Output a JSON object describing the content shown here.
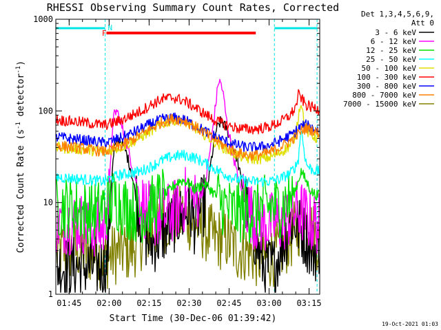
{
  "chart_data": {
    "type": "line",
    "title": "RHESSI Observing Summary Count Rates, Corrected",
    "xlabel": "Start Time (30-Dec-06 01:39:42)",
    "ylabel_main": "Corrected Count Rate (s",
    "ylabel_sup1": "-1",
    "ylabel_mid": " detector",
    "ylabel_sup2": "-1",
    "ylabel_end": ")",
    "y_scale": "log",
    "ylim": [
      1,
      1000
    ],
    "xlim_min": [
      0,
      99
    ],
    "x_tick_min": [
      5,
      20,
      35,
      50,
      65,
      80,
      95
    ],
    "x_tick_labels": [
      "01:45",
      "02:00",
      "02:15",
      "02:30",
      "02:45",
      "03:00",
      "03:15"
    ],
    "y_tick_values": [
      1,
      10,
      100,
      1000
    ],
    "y_tick_labels": [
      "1",
      "10",
      "100",
      "1000"
    ],
    "legend_header": [
      "Det 1,3,4,5,6,9,",
      "Att 0"
    ],
    "legend_placement": "right",
    "timestamp": "19-Oct-2021 01:03",
    "flags": {
      "night_bars": [
        [
          0,
          18.5
        ],
        [
          82,
          98
        ]
      ],
      "night_color": "#00e5e5",
      "night_label": "N",
      "night_label_min": 19.5,
      "flare_bar": [
        19,
        75
      ],
      "flare_color": "#ff0000",
      "flare_label": "F",
      "flare_label_min": 17.3,
      "night_boundaries_min": [
        18.5,
        82,
        98
      ]
    },
    "series": [
      {
        "name": "3 - 6 keV",
        "color": "#000000",
        "floor": 2,
        "x": [
          0,
          18,
          19,
          20,
          21,
          22,
          24,
          26,
          28,
          30,
          32,
          34,
          36,
          40,
          44,
          46,
          48,
          50,
          52,
          54,
          56,
          58,
          60,
          62,
          64,
          66,
          68,
          70,
          72,
          74,
          76,
          78,
          80,
          82,
          84,
          86,
          88,
          90,
          92,
          94,
          96,
          98
        ],
        "y": [
          2,
          2,
          2,
          5,
          20,
          40,
          50,
          38,
          24,
          12,
          7,
          4,
          3.5,
          4.5,
          6,
          7,
          7,
          9,
          6,
          8,
          10,
          25,
          60,
          78,
          65,
          45,
          30,
          15,
          8,
          5,
          3,
          2,
          2,
          2,
          3,
          4,
          6,
          6,
          5,
          4,
          3,
          3
        ]
      },
      {
        "name": "6 - 12 keV",
        "color": "#ff00ff",
        "floor": 2,
        "x": [
          0,
          10,
          18,
          20,
          21,
          22,
          23,
          24,
          26,
          28,
          30,
          32,
          36,
          40,
          44,
          48,
          50,
          52,
          54,
          56,
          58,
          60,
          61,
          62,
          63,
          64,
          66,
          68,
          70,
          72,
          74,
          76,
          80,
          84,
          88,
          90,
          92,
          94,
          96,
          98
        ],
        "y": [
          6,
          6,
          5,
          12,
          55,
          95,
          100,
          80,
          50,
          30,
          18,
          10,
          7,
          7,
          8,
          10,
          15,
          10,
          12,
          15,
          40,
          120,
          210,
          200,
          140,
          80,
          40,
          20,
          12,
          9,
          7,
          6,
          6,
          6,
          7,
          8,
          8,
          7,
          6,
          6
        ]
      },
      {
        "name": "12 - 25 keV",
        "color": "#00e000",
        "floor": 2,
        "x": [
          0,
          6,
          10,
          16,
          18,
          20,
          22,
          24,
          26,
          30,
          34,
          38,
          42,
          44,
          46,
          48,
          50,
          52,
          54,
          56,
          58,
          60,
          62,
          64,
          66,
          70,
          74,
          78,
          82,
          84,
          86,
          88,
          90,
          92,
          94,
          96,
          98
        ],
        "y": [
          9,
          9,
          8,
          8,
          9,
          10,
          11,
          10,
          9,
          8,
          8,
          10,
          13,
          15,
          17,
          17.5,
          16,
          14,
          15,
          16,
          14,
          12,
          10,
          9,
          8,
          8,
          8,
          9,
          9,
          9,
          10,
          11,
          14,
          22,
          17,
          13,
          12
        ]
      },
      {
        "name": "25 - 50 keV",
        "color": "#00ffff",
        "floor": 2,
        "x": [
          0,
          10,
          18,
          20,
          24,
          28,
          32,
          36,
          40,
          44,
          48,
          52,
          56,
          60,
          64,
          68,
          72,
          76,
          80,
          84,
          88,
          90,
          91,
          92,
          93,
          94,
          96,
          98
        ],
        "y": [
          19,
          18,
          17,
          18,
          20,
          21,
          22,
          25,
          29,
          32,
          33,
          31,
          27,
          23,
          20,
          18,
          17,
          17,
          17,
          18,
          21,
          25,
          30,
          65,
          40,
          26,
          23,
          22
        ]
      },
      {
        "name": "50 - 100 keV",
        "color": "#e0e000",
        "floor": 2,
        "x": [
          0,
          10,
          18,
          20,
          24,
          28,
          32,
          36,
          40,
          44,
          48,
          52,
          56,
          60,
          64,
          68,
          72,
          76,
          80,
          84,
          88,
          90,
          91,
          92,
          93,
          94,
          96,
          98
        ],
        "y": [
          40,
          38,
          36,
          37,
          40,
          45,
          52,
          62,
          72,
          80,
          78,
          66,
          55,
          45,
          38,
          33,
          30,
          30,
          31,
          35,
          42,
          55,
          90,
          130,
          80,
          60,
          55,
          50
        ]
      },
      {
        "name": "100 - 300 keV",
        "color": "#ff0000",
        "floor": 2,
        "x": [
          0,
          10,
          18,
          20,
          24,
          28,
          32,
          36,
          40,
          44,
          48,
          52,
          56,
          60,
          64,
          68,
          72,
          76,
          80,
          84,
          88,
          90,
          91,
          92,
          93,
          94,
          96,
          98
        ],
        "y": [
          80,
          75,
          70,
          72,
          78,
          88,
          100,
          118,
          135,
          140,
          130,
          110,
          92,
          78,
          70,
          65,
          63,
          64,
          67,
          75,
          90,
          110,
          150,
          140,
          125,
          115,
          110,
          105
        ]
      },
      {
        "name": "300 - 800 keV",
        "color": "#0000ff",
        "floor": 2,
        "x": [
          0,
          10,
          18,
          20,
          24,
          28,
          32,
          36,
          40,
          44,
          48,
          52,
          56,
          60,
          64,
          68,
          72,
          76,
          80,
          84,
          88,
          90,
          92,
          94,
          96,
          98
        ],
        "y": [
          52,
          48,
          45,
          46,
          50,
          56,
          64,
          73,
          81,
          84,
          80,
          70,
          60,
          52,
          46,
          42,
          40,
          40,
          42,
          47,
          54,
          60,
          68,
          70,
          66,
          62
        ]
      },
      {
        "name": "800 - 7000 keV",
        "color": "#ff8000",
        "floor": 2,
        "x": [
          0,
          10,
          18,
          20,
          24,
          28,
          32,
          36,
          40,
          44,
          48,
          52,
          56,
          60,
          64,
          68,
          72,
          76,
          80,
          84,
          88,
          90,
          92,
          94,
          96,
          98
        ],
        "y": [
          42,
          39,
          36,
          37,
          41,
          47,
          55,
          65,
          76,
          82,
          79,
          68,
          57,
          48,
          40,
          35,
          33,
          33,
          35,
          40,
          47,
          53,
          60,
          65,
          62,
          58
        ]
      },
      {
        "name": "7000 - 15000 keV",
        "color": "#808000",
        "floor": 2,
        "x": [
          0,
          10,
          18,
          20,
          24,
          28,
          32,
          36,
          40,
          44,
          48,
          52,
          56,
          60,
          64,
          68,
          72,
          76,
          80,
          84,
          88,
          90,
          92,
          94,
          96,
          98
        ],
        "y": [
          3,
          3,
          2.5,
          2.5,
          3,
          3,
          4,
          5,
          6,
          7,
          7,
          6,
          5,
          4,
          4,
          3,
          3,
          2.5,
          2.5,
          3,
          4,
          5,
          6,
          6,
          5,
          4
        ]
      }
    ]
  }
}
